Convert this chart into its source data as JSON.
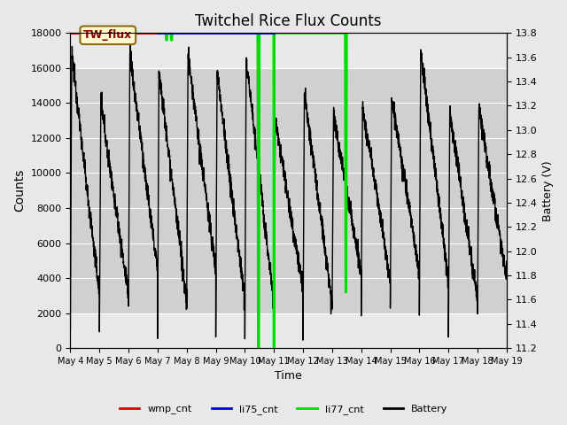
{
  "title": "Twitchel Rice Flux Counts",
  "xlabel": "Time",
  "ylabel_left": "Counts",
  "ylabel_right": "Battery (V)",
  "ylim_left": [
    0,
    18000
  ],
  "ylim_right": [
    11.2,
    13.8
  ],
  "yticks_left": [
    0,
    2000,
    4000,
    6000,
    8000,
    10000,
    12000,
    14000,
    16000,
    18000
  ],
  "yticks_right": [
    11.2,
    11.4,
    11.6,
    11.8,
    12.0,
    12.2,
    12.4,
    12.6,
    12.8,
    13.0,
    13.2,
    13.4,
    13.6,
    13.8
  ],
  "xtick_labels": [
    "May 4",
    "May 5",
    "May 6",
    "May 7",
    "May 8",
    "May 9",
    "May 10",
    "May 11",
    "May 12",
    "May 13",
    "May 14",
    "May 15",
    "May 16",
    "May 17",
    "May 18",
    "May 19"
  ],
  "annotation_text": "TW_flux",
  "bg_color": "#e8e8e8",
  "inner_band_low": 2000,
  "inner_band_high": 16000,
  "inner_band_color": "#d0d0d0",
  "grid_color": "#ffffff",
  "wmp_color": "#dd0000",
  "li75_color": "#0000dd",
  "li77_color": "#00dd00",
  "battery_color": "#000000",
  "wmp_lw": 2.0,
  "li75_lw": 2.0,
  "li77_lw": 2.0,
  "battery_lw": 1.0
}
